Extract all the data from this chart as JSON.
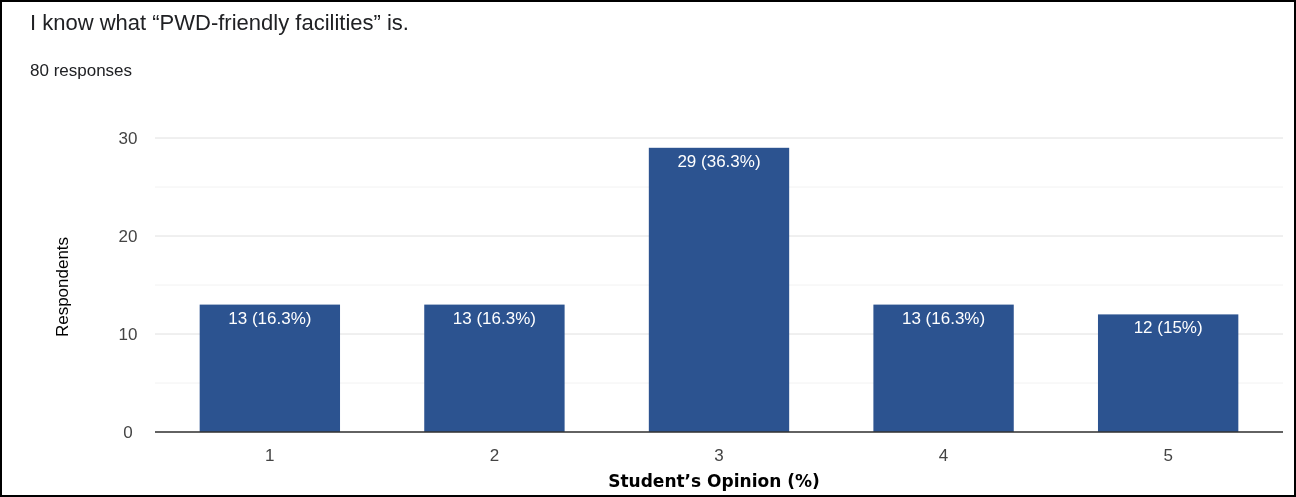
{
  "chart_data": {
    "type": "bar",
    "title": "I know what “PWD-friendly facilities” is.",
    "subtitle": "80 responses",
    "xlabel": "Student’s Opinion (%)",
    "ylabel": "Respondents",
    "categories": [
      "1",
      "2",
      "3",
      "4",
      "5"
    ],
    "values": [
      13,
      13,
      29,
      13,
      12
    ],
    "color": "#2c5390",
    "value_labels": [
      "13 (16.3%)",
      "13 (16.3%)",
      "29 (36.3%)",
      "13 (16.3%)",
      "12 (15%)"
    ],
    "ylim": [
      0,
      30
    ],
    "yticks": [
      0,
      {
        "value": 5,
        "label": null
      },
      10,
      {
        "value": 15,
        "label": null
      },
      20,
      {
        "value": 25,
        "label": null
      },
      30
    ],
    "grid": "y"
  }
}
